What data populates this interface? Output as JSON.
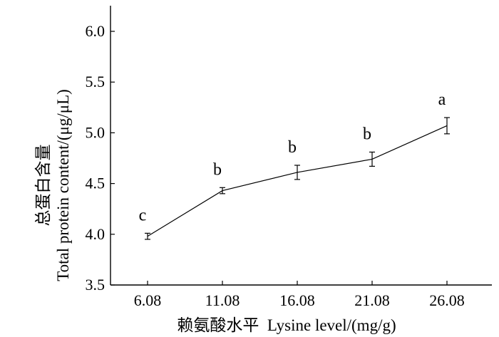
{
  "chart_data": {
    "type": "line",
    "x": [
      "6.08",
      "11.08",
      "16.08",
      "21.08",
      "26.08"
    ],
    "series": [
      {
        "values": [
          3.98,
          4.43,
          4.61,
          4.74,
          5.07
        ],
        "errors": [
          0.03,
          0.03,
          0.07,
          0.07,
          0.08
        ],
        "labels": [
          "c",
          "b",
          "b",
          "b",
          "a"
        ]
      }
    ],
    "ylim": [
      3.5,
      6.25
    ],
    "yticks": [
      "3.5",
      "4.0",
      "4.5",
      "5.0",
      "5.5",
      "6.0"
    ],
    "xlabel": "赖氨酸水平  Lysine level/(mg/g)",
    "ylabel_cn": "总蛋白含量",
    "ylabel_en": "Total protein content/(μg/μL)",
    "grid": false,
    "line_color": "#000000"
  }
}
